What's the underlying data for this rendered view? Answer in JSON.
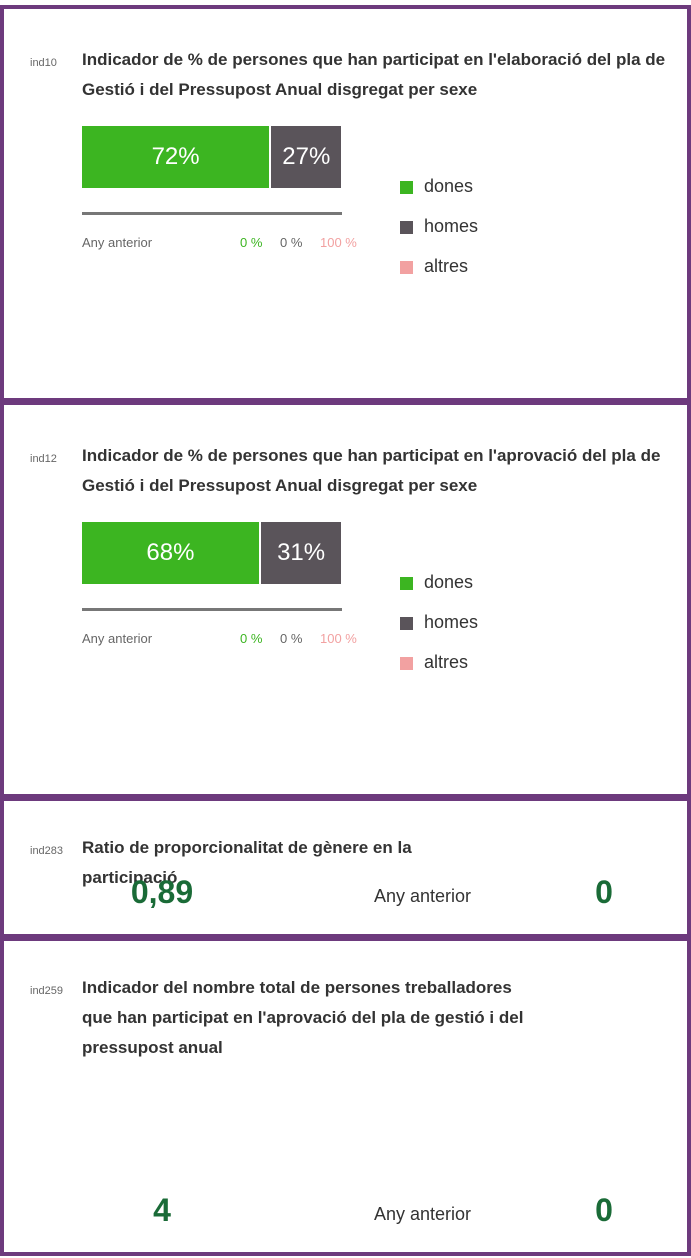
{
  "cards": [
    {
      "id": "ind10",
      "title": "Indicador de % de persones que han participat en l'elaboració del pla de Gestió i del Pressupost Anual disgregat per sexe",
      "bars": {
        "values": [
          72,
          27
        ],
        "value_labels": [
          "72%",
          "27%"
        ],
        "colors": [
          "#3cb521",
          "#5a545a"
        ]
      },
      "legend": [
        {
          "name": "dones",
          "color": "#3cb521"
        },
        {
          "name": "homes",
          "color": "#5a545a"
        },
        {
          "name": "altres",
          "color": "#f2a1a1"
        }
      ],
      "previous": {
        "label": "Any anterior",
        "values": [
          "0 %",
          "0 %",
          "100 %"
        ]
      }
    },
    {
      "id": "ind12",
      "title": "Indicador de % de persones que han participat en l'aprovació del pla de Gestió i del Pressupost Anual disgregat per sexe",
      "bars": {
        "values": [
          68,
          31
        ],
        "value_labels": [
          "68%",
          "31%"
        ],
        "colors": [
          "#3cb521",
          "#5a545a"
        ]
      },
      "legend": [
        {
          "name": "dones",
          "color": "#3cb521"
        },
        {
          "name": "homes",
          "color": "#5a545a"
        },
        {
          "name": "altres",
          "color": "#f2a1a1"
        }
      ],
      "previous": {
        "label": "Any anterior",
        "values": [
          "0 %",
          "0 %",
          "100 %"
        ]
      }
    },
    {
      "id": "ind283",
      "title": "Ratio de proporcionalitat de gènere en la participació",
      "value": "0,89",
      "previous": {
        "label": "Any anterior",
        "value": "0"
      }
    },
    {
      "id": "ind259",
      "title": "Indicador del nombre total de persones treballadores que han participat en l'aprovació del pla de gestió i del pressupost anual",
      "value": "4",
      "previous": {
        "label": "Any anterior",
        "value": "0"
      }
    }
  ]
}
